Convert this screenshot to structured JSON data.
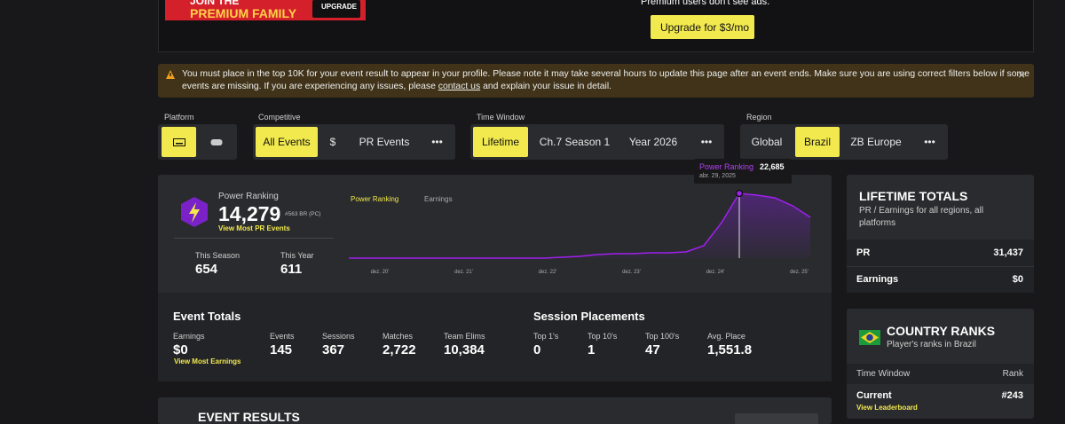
{
  "ad": {
    "line1": "JOIN THE",
    "line2": "PREMIUM FAMILY",
    "button": "UPGRADE",
    "note": "Premium users don't see ads.",
    "cta": "Upgrade for $3/mo"
  },
  "notice": {
    "text1": "You must place in the top 10K for your event result to appear in your profile. Please note it may take several hours to update this page after an event ends. Make sure you are using correct filters below if some",
    "text2": "events are missing. If you are experiencing any issues, please",
    "link": "contact us",
    "text3": "and explain your issue in detail.",
    "close": "×"
  },
  "filters": {
    "platform": {
      "label": "Platform"
    },
    "competitive": {
      "label": "Competitive",
      "options": [
        "All Events",
        "$",
        "PR Events",
        "•••"
      ]
    },
    "time_window": {
      "label": "Time Window",
      "options": [
        "Lifetime",
        "Ch.7 Season 1",
        "Year 2026",
        "•••"
      ]
    },
    "region": {
      "label": "Region",
      "options": [
        "Global",
        "Brazil",
        "ZB Europe",
        "•••"
      ]
    }
  },
  "power": {
    "label": "Power Ranking",
    "value": "14,279",
    "rank": "#563 BR (PC)",
    "link": "View Most PR Events",
    "stats": [
      {
        "label": "This Season",
        "value": "654"
      },
      {
        "label": "This Year",
        "value": "611"
      }
    ]
  },
  "chart_data": {
    "type": "line",
    "tabs": [
      "Power Ranking",
      "Earnings"
    ],
    "series": [
      {
        "name": "Power Ranking",
        "color": "#a020f0",
        "values": [
          0,
          0,
          0,
          0,
          0,
          0,
          0,
          0,
          0,
          0,
          0,
          0,
          311,
          622,
          1243,
          1554,
          1554,
          1865,
          1865,
          2175,
          4351,
          12430,
          22685,
          22064,
          21132,
          18335,
          14295
        ]
      }
    ],
    "xtick_labels": [
      "dez. 20'",
      "dez. 21'",
      "dez. 22'",
      "dez. 23'",
      "dez. 24'",
      "dez. 25'"
    ],
    "tooltip": {
      "value": "22,685",
      "date": "abr. 29, 2025"
    }
  },
  "event_totals": {
    "title": "Event Totals",
    "stats": [
      {
        "label": "Earnings",
        "value": "$0"
      },
      {
        "label": "Events",
        "value": "145"
      },
      {
        "label": "Sessions",
        "value": "367"
      },
      {
        "label": "Matches",
        "value": "2,722"
      },
      {
        "label": "Team Elims",
        "value": "10,384"
      }
    ],
    "link": "View Most Earnings"
  },
  "session_placements": {
    "title": "Session Placements",
    "stats": [
      {
        "label": "Top 1's",
        "value": "0"
      },
      {
        "label": "Top 10's",
        "value": "1"
      },
      {
        "label": "Top 100's",
        "value": "47"
      },
      {
        "label": "Avg. Place",
        "value": "1,551.8"
      }
    ]
  },
  "lifetime": {
    "title": "LIFETIME TOTALS",
    "subtitle1": "PR / Earnings for all regions, all",
    "subtitle2": "platforms",
    "rows": [
      [
        "PR",
        "31,437"
      ],
      [
        "Earnings",
        "$0"
      ]
    ]
  },
  "country": {
    "title": "COUNTRY RANKS",
    "subtitle": "Player's ranks in Brazil",
    "header": [
      "Time Window",
      "Rank"
    ],
    "row": [
      "Current",
      "#243"
    ],
    "link": "View Leaderboard"
  },
  "results": {
    "title": "EVENT RESULTS"
  }
}
